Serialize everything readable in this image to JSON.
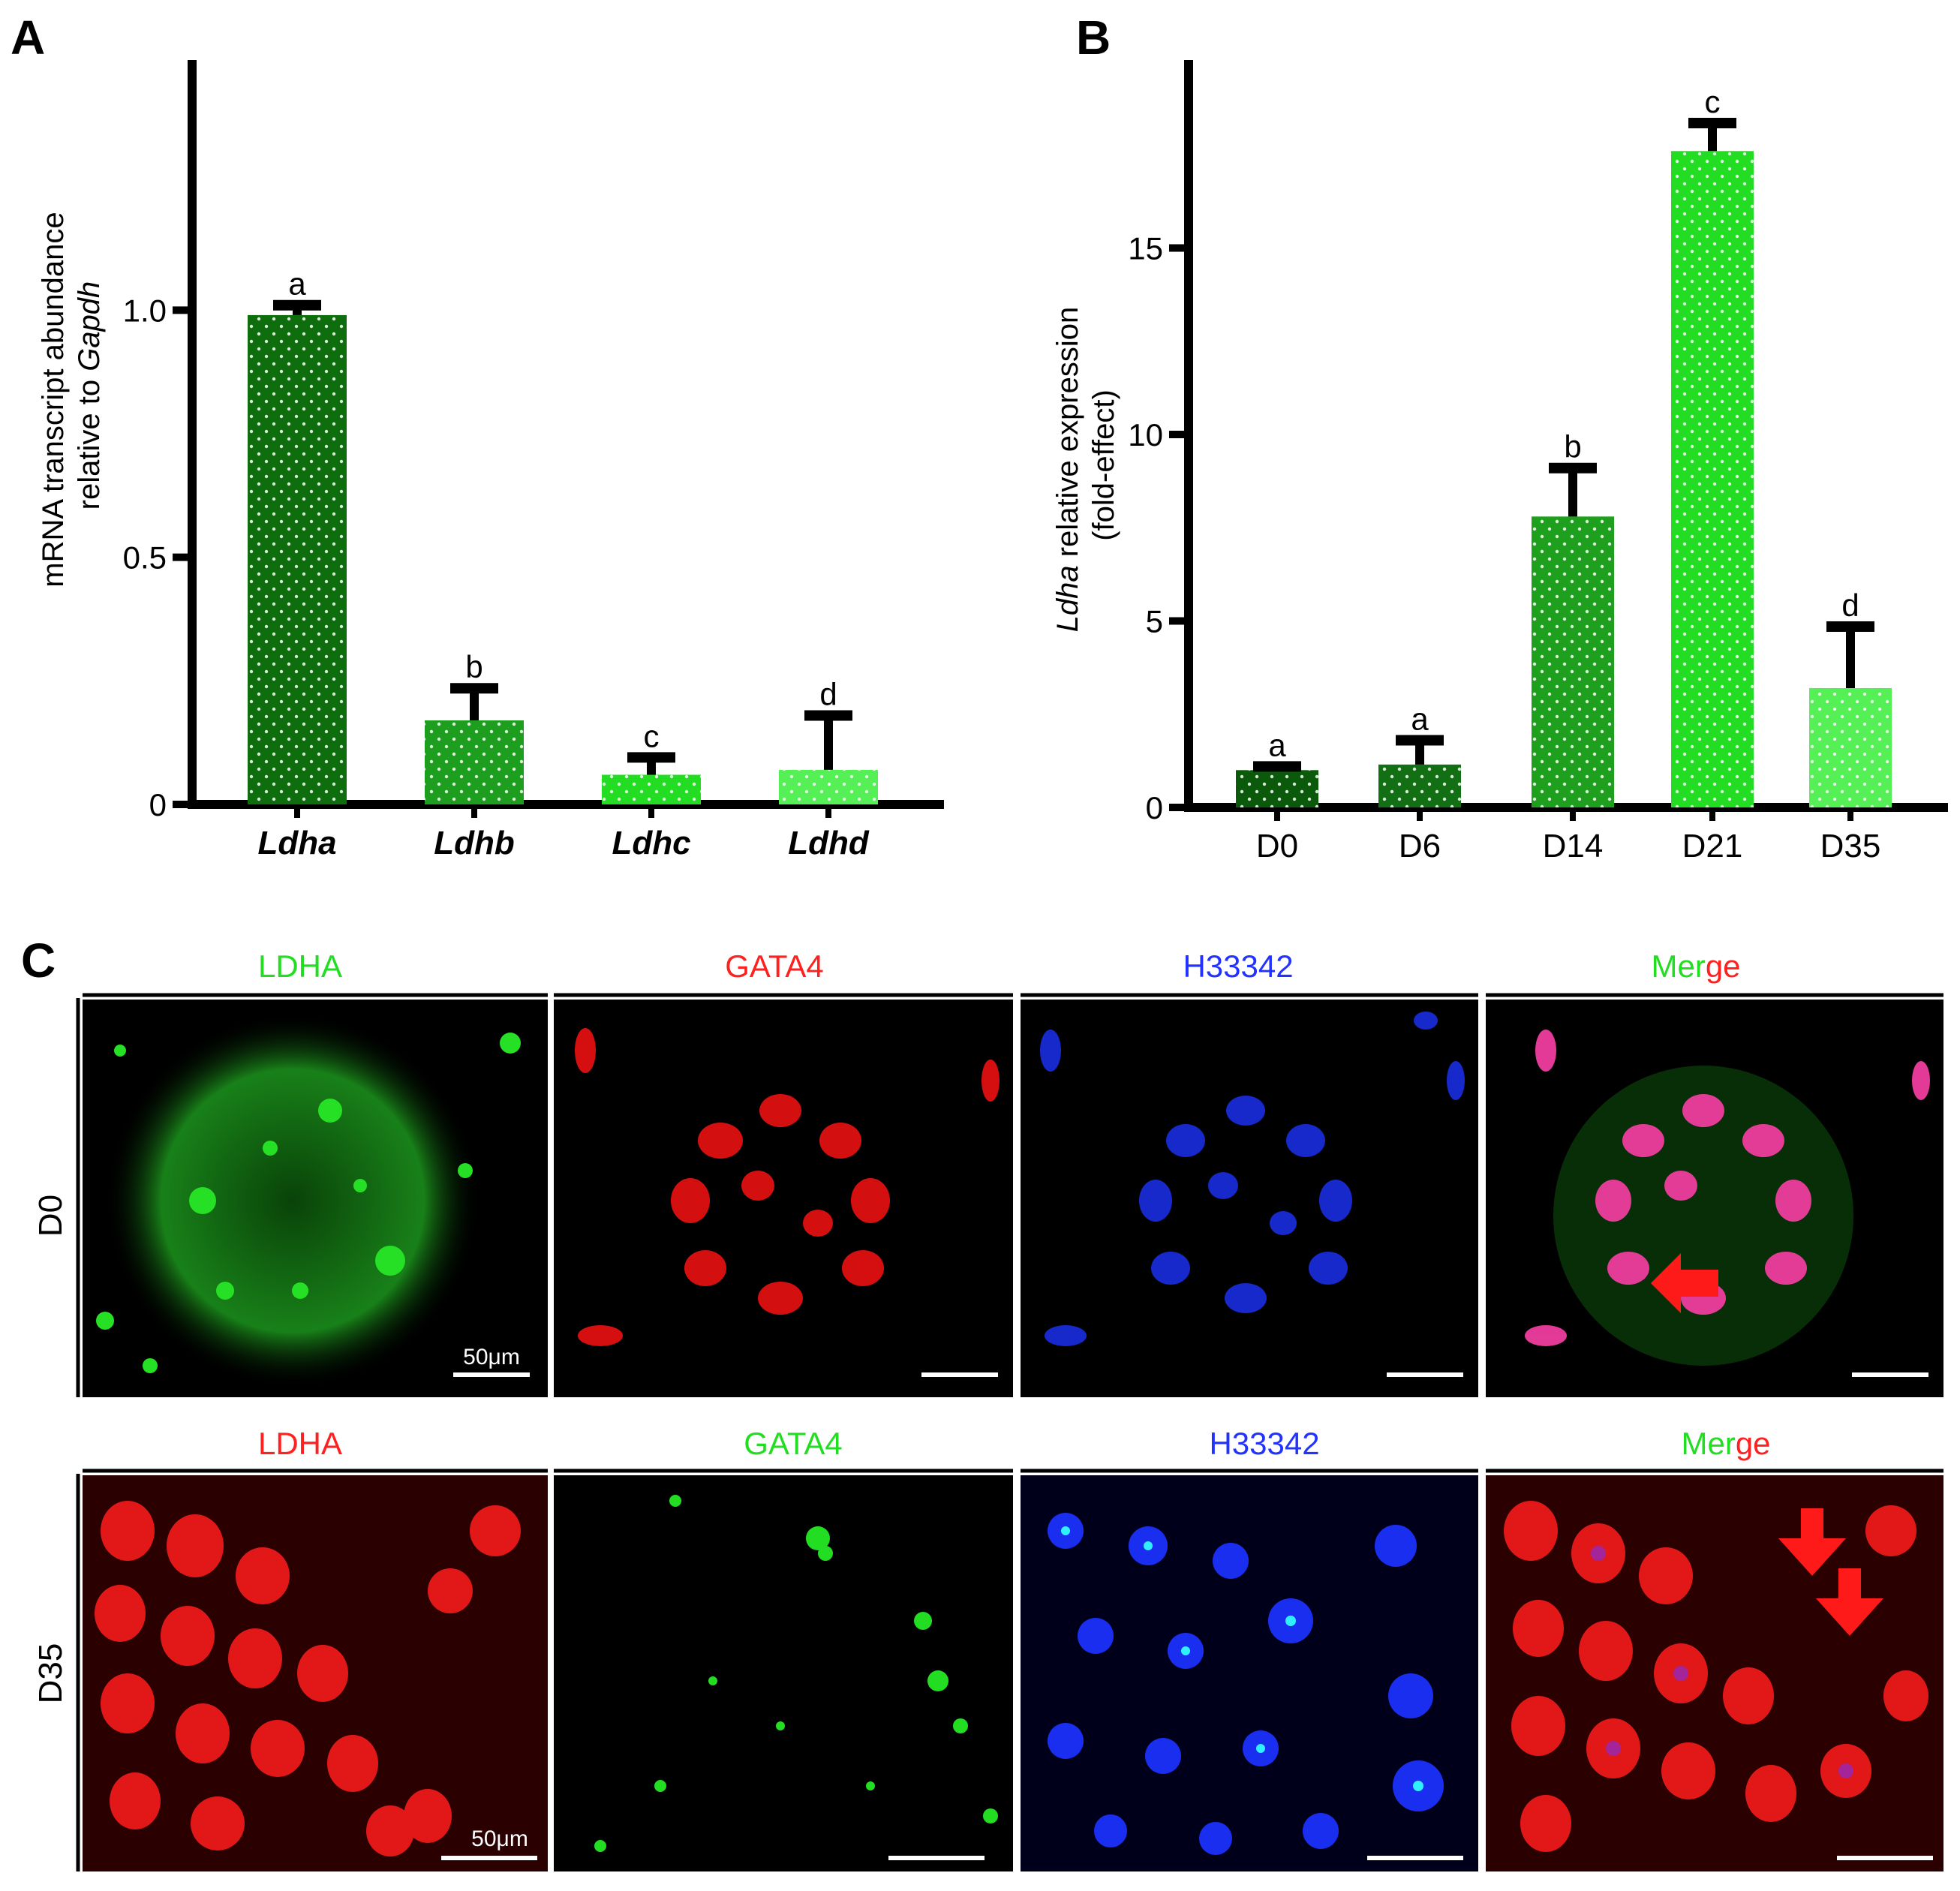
{
  "panels": {
    "a": "A",
    "b": "B",
    "c": "C"
  },
  "chart_data": [
    {
      "type": "bar",
      "panel": "A",
      "ylabel_line1": "mRNA transcript abundance",
      "ylabel_line2": "relative to ",
      "ylabel_italic": "Gapdh",
      "categories": [
        "Ldha",
        "Ldhb",
        "Ldhc",
        "Ldhd"
      ],
      "values": [
        0.99,
        0.17,
        0.06,
        0.07
      ],
      "errors": [
        0.02,
        0.065,
        0.035,
        0.11
      ],
      "letters": [
        "a",
        "b",
        "c",
        "d"
      ],
      "colors": [
        "#0e6e0e",
        "#1e9e1e",
        "#22dd22",
        "#55f055"
      ],
      "ylim": [
        0,
        1.5
      ],
      "yticks": [
        0,
        0.5,
        1.0
      ],
      "ytick_labels": [
        "0",
        "0.5",
        "1.0"
      ]
    },
    {
      "type": "bar",
      "panel": "B",
      "ylabel_italic": "Ldha",
      "ylabel_line1_rest": " relative expression",
      "ylabel_line2": "(fold-effect)",
      "categories": [
        "D0",
        "D6",
        "D14",
        "D21",
        "D35"
      ],
      "values": [
        1.0,
        1.15,
        7.8,
        17.6,
        3.2
      ],
      "errors": [
        0.1,
        0.65,
        1.3,
        0.75,
        1.65
      ],
      "letters": [
        "a",
        "a",
        "b",
        "c",
        "d"
      ],
      "colors": [
        "#0b5a0b",
        "#136f13",
        "#1ea01e",
        "#22dd22",
        "#55f055"
      ],
      "ylim": [
        0,
        20
      ],
      "yticks": [
        0,
        5,
        10,
        15
      ],
      "ytick_labels": [
        "0",
        "5",
        "10",
        "15"
      ]
    }
  ],
  "micrographs": {
    "rows": [
      {
        "label": "D0",
        "headers": [
          "LDHA",
          "GATA4",
          "H33342",
          "Merge"
        ],
        "header_colors": [
          "#22dd22",
          "#ff2020",
          "#2233ff",
          "merge"
        ]
      },
      {
        "label": "D35",
        "headers": [
          "LDHA",
          "GATA4",
          "H33342",
          "Merge"
        ],
        "header_colors": [
          "#ff2020",
          "#22dd22",
          "#2233ff",
          "merge"
        ]
      }
    ],
    "merge_parts": [
      "Mer",
      "ge"
    ],
    "scale_label": "50μm"
  }
}
